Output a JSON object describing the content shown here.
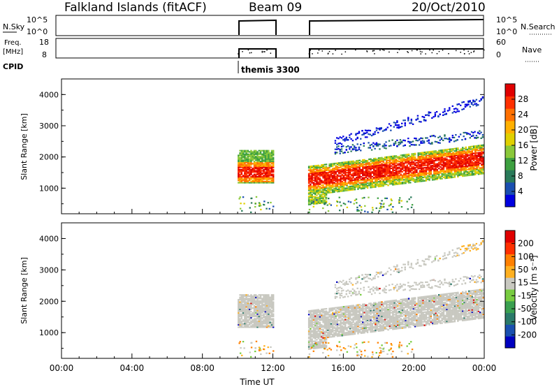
{
  "header": {
    "site": "Falkland Islands (fitACF)",
    "beam": "Beam 09",
    "date": "20/Oct/2010"
  },
  "strips": {
    "nsky_label": "N.Sky",
    "nsky_ticks": [
      "10^5",
      "10^0"
    ],
    "nsearch_label": "N.Search",
    "nsearch_ticks": [
      "10^5",
      "10^0"
    ],
    "freq_label": "Freq.",
    "freq_unit": "[MHz]",
    "freq_ticks": [
      "18",
      "8"
    ],
    "nave_label": "Nave",
    "nave_ticks": [
      "60",
      "0"
    ],
    "cpid_label": "CPID",
    "cpid_value": "themis 3300"
  },
  "colorbars": {
    "power": {
      "label": "Power [dB]",
      "ticks": [
        "28",
        "24",
        "20",
        "16",
        "12",
        "8",
        "4"
      ],
      "colors": [
        "#0000e0",
        "#1a4fb0",
        "#2a7a5a",
        "#3da040",
        "#8ac83a",
        "#e0d000",
        "#ffb000",
        "#ff7000",
        "#ff3000",
        "#e00000"
      ]
    },
    "velocity": {
      "label": "Velocity [m s⁻¹]",
      "ticks": [
        "200",
        "100",
        "50",
        "15",
        "-15",
        "-50",
        "-100",
        "-200"
      ],
      "colors": [
        "#e00000",
        "#ff3000",
        "#ff8000",
        "#ffb020",
        "#c8c8c0",
        "#78cc40",
        "#3aa050",
        "#2a7a6a",
        "#1a50b0",
        "#0000c0"
      ]
    }
  },
  "chart_data": [
    {
      "type": "heatmap",
      "name": "power",
      "ylabel": "Slant Range [km]",
      "y_ticks": [
        "4000",
        "3000",
        "2000",
        "1000"
      ],
      "ylim": [
        180,
        4500
      ],
      "xlim": [
        0,
        24
      ],
      "regions": [
        {
          "t0": 10.0,
          "t1": 12.0,
          "r0": 1100,
          "r1": 2200,
          "kind": "core"
        },
        {
          "t0": 14.0,
          "t1": 24.0,
          "r0": 500,
          "r1": 2600,
          "kind": "core"
        },
        {
          "t0": 15.5,
          "t1": 24.0,
          "r0": 2000,
          "r1": 3900,
          "kind": "upper"
        }
      ]
    },
    {
      "type": "heatmap",
      "name": "velocity",
      "ylabel": "Slant Range [km]",
      "y_ticks": [
        "4000",
        "3000",
        "2000",
        "1000"
      ],
      "ylim": [
        180,
        4500
      ],
      "xlim": [
        0,
        24
      ],
      "x_ticks": [
        "00:00",
        "04:00",
        "08:00",
        "12:00",
        "16:00",
        "20:00",
        "00:00"
      ],
      "xlabel": "Time UT"
    }
  ]
}
